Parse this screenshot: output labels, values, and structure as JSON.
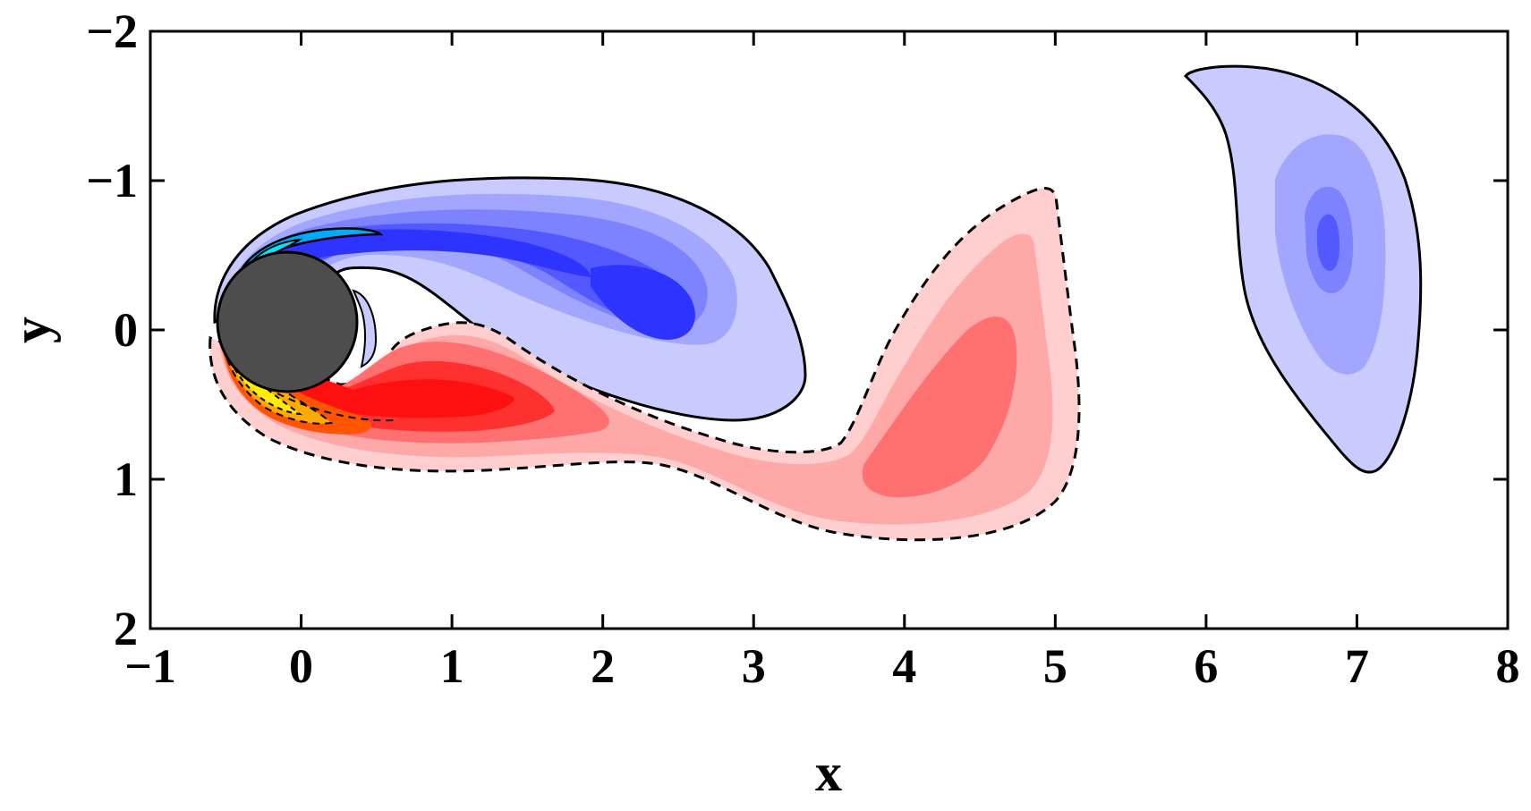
{
  "chart_data": {
    "type": "contour",
    "xlabel": "x",
    "ylabel": "y",
    "xlim": [
      -1,
      8
    ],
    "ylim": [
      -2,
      2
    ],
    "y_axis_inverted": true,
    "x_ticks": [
      "−1",
      "0",
      "1",
      "2",
      "3",
      "4",
      "5",
      "6",
      "7",
      "8"
    ],
    "y_ticks": [
      "−2",
      "−1",
      "0",
      "1",
      "2"
    ],
    "grid": false,
    "legend": "none",
    "cylinder": {
      "center": [
        0,
        0
      ],
      "radius": 0.5,
      "color": "#4d4d4d"
    },
    "colors": {
      "negative_levels": [
        "#c9cbff",
        "#a3a6ff",
        "#7d82ff",
        "#5359ff",
        "#2d34ff",
        "#1a3bff",
        "#00aaff",
        "#00e5ff"
      ],
      "positive_levels": [
        "#ffcfcf",
        "#ffa8a8",
        "#ff7070",
        "#ff3030",
        "#ff1010",
        "#ff5500",
        "#ffaa00",
        "#ffee00"
      ],
      "outline": "#000000"
    },
    "vortices": [
      {
        "sign": "negative",
        "outline": "solid",
        "description_point": [
          2.3,
          -0.3
        ]
      },
      {
        "sign": "positive",
        "outline": "dashed",
        "description_point": [
          4.2,
          0.3
        ]
      },
      {
        "sign": "negative",
        "outline": "solid",
        "description_point": [
          6.8,
          -0.5
        ]
      },
      {
        "sign": "positive",
        "outline": "dashed",
        "description_point": [
          1.2,
          0.5
        ]
      }
    ]
  }
}
